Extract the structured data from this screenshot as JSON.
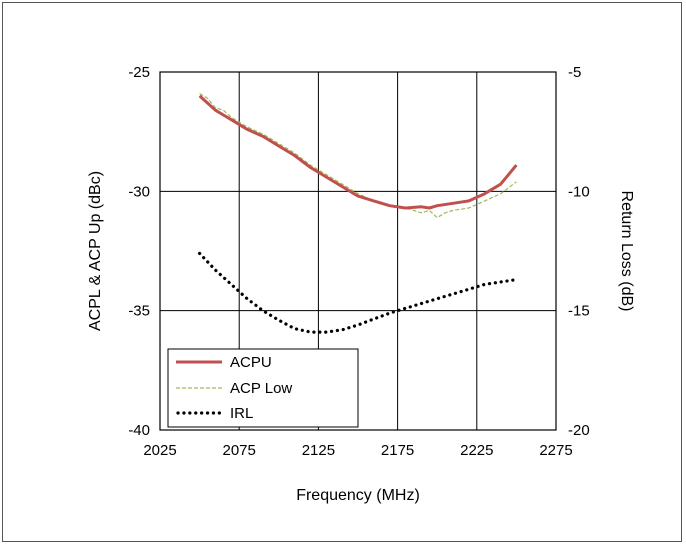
{
  "chart_data": {
    "type": "line",
    "xlabel": "Frequency (MHz)",
    "ylabel": "ACPL & ACP Up (dBc)",
    "y2label": "Return Loss (dB)",
    "xlim": [
      2025,
      2275
    ],
    "ylim": [
      -40,
      -25
    ],
    "y2lim": [
      -20,
      -5
    ],
    "x_ticks": [
      "2025",
      "2075",
      "2125",
      "2175",
      "2225",
      "2275"
    ],
    "y_ticks": [
      "-40",
      "-35",
      "-30",
      "-25"
    ],
    "y2_ticks": [
      "-20",
      "-15",
      "-10",
      "-5"
    ],
    "grid": true,
    "legend_position": "bottom-left",
    "colors": {
      "acpu": "#c0504d",
      "acp_low": "#9bbb59",
      "irl": "#000000"
    },
    "series": [
      {
        "name": "ACPU",
        "axis": "left",
        "style": "solid",
        "x": [
          2050,
          2055,
          2060,
          2065,
          2070,
          2080,
          2090,
          2100,
          2110,
          2120,
          2130,
          2140,
          2150,
          2160,
          2170,
          2180,
          2190,
          2195,
          2200,
          2210,
          2220,
          2230,
          2240,
          2250
        ],
        "y": [
          -26.0,
          -26.3,
          -26.6,
          -26.8,
          -27.0,
          -27.4,
          -27.7,
          -28.1,
          -28.5,
          -29.0,
          -29.4,
          -29.8,
          -30.2,
          -30.4,
          -30.6,
          -30.7,
          -30.65,
          -30.7,
          -30.6,
          -30.5,
          -30.4,
          -30.1,
          -29.7,
          -28.9
        ]
      },
      {
        "name": "ACP Low",
        "axis": "left",
        "style": "dashed",
        "x": [
          2050,
          2055,
          2060,
          2065,
          2070,
          2080,
          2090,
          2100,
          2110,
          2120,
          2130,
          2140,
          2150,
          2160,
          2170,
          2180,
          2190,
          2195,
          2200,
          2205,
          2210,
          2220,
          2230,
          2240,
          2250
        ],
        "y": [
          -25.9,
          -26.1,
          -26.5,
          -26.6,
          -26.9,
          -27.3,
          -27.6,
          -28.0,
          -28.4,
          -28.9,
          -29.3,
          -29.7,
          -30.1,
          -30.4,
          -30.6,
          -30.7,
          -30.9,
          -30.8,
          -31.1,
          -30.9,
          -30.8,
          -30.7,
          -30.4,
          -30.1,
          -29.6
        ]
      },
      {
        "name": "IRL",
        "axis": "right",
        "style": "dotted",
        "x": [
          2050,
          2060,
          2070,
          2080,
          2090,
          2100,
          2110,
          2120,
          2130,
          2140,
          2150,
          2160,
          2170,
          2180,
          2190,
          2200,
          2210,
          2220,
          2230,
          2240,
          2250
        ],
        "y": [
          -12.6,
          -13.3,
          -13.9,
          -14.5,
          -15.0,
          -15.4,
          -15.75,
          -15.9,
          -15.9,
          -15.8,
          -15.6,
          -15.35,
          -15.1,
          -14.9,
          -14.7,
          -14.5,
          -14.3,
          -14.1,
          -13.9,
          -13.8,
          -13.7
        ]
      }
    ]
  }
}
